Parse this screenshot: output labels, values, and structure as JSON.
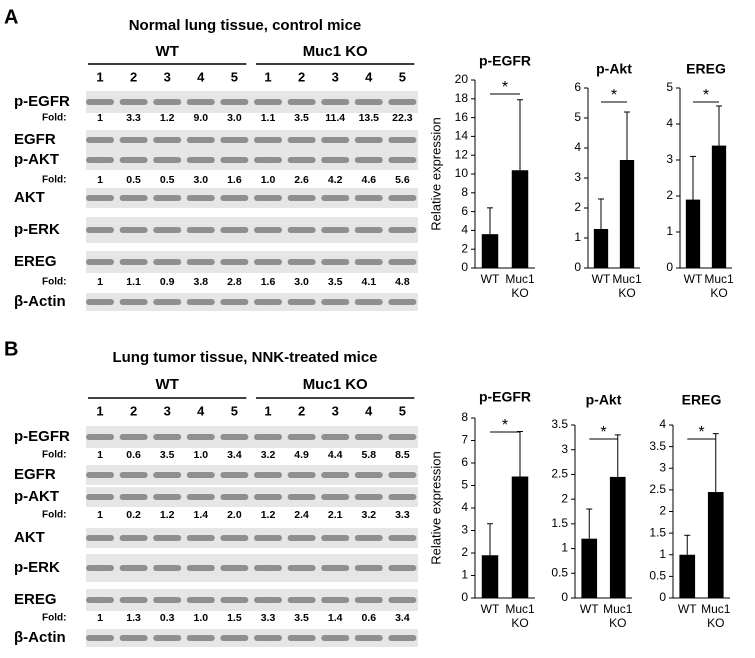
{
  "panels": [
    {
      "letter": "A",
      "title": "Normal lung tissue, control mice",
      "groups": [
        "WT",
        "Muc1 KO"
      ],
      "lanes": [
        "1",
        "2",
        "3",
        "4",
        "5",
        "1",
        "2",
        "3",
        "4",
        "5"
      ],
      "rows": [
        {
          "label": "p-EGFR",
          "fold_label": "Fold:",
          "folds": [
            "1",
            "3.3",
            "1.2",
            "9.0",
            "3.0",
            "1.1",
            "3.5",
            "11.4",
            "13.5",
            "22.3"
          ]
        },
        {
          "label": "EGFR"
        },
        {
          "label": "p-AKT",
          "fold_label": "Fold:",
          "folds": [
            "1",
            "0.5",
            "0.5",
            "3.0",
            "1.6",
            "1.0",
            "2.6",
            "4.2",
            "4.6",
            "5.6"
          ]
        },
        {
          "label": "AKT"
        },
        {
          "label": "p-ERK"
        },
        {
          "label": "EREG",
          "fold_label": "Fold:",
          "folds": [
            "1",
            "1.1",
            "0.9",
            "3.8",
            "2.8",
            "1.6",
            "3.0",
            "3.5",
            "4.1",
            "4.8"
          ]
        },
        {
          "label": "β-Actin"
        }
      ]
    },
    {
      "letter": "B",
      "title": "Lung tumor tissue, NNK-treated mice",
      "groups": [
        "WT",
        "Muc1 KO"
      ],
      "lanes": [
        "1",
        "2",
        "3",
        "4",
        "5",
        "1",
        "2",
        "3",
        "4",
        "5"
      ],
      "rows": [
        {
          "label": "p-EGFR",
          "fold_label": "Fold:",
          "folds": [
            "1",
            "0.6",
            "3.5",
            "1.0",
            "3.4",
            "3.2",
            "4.9",
            "4.4",
            "5.8",
            "8.5"
          ]
        },
        {
          "label": "EGFR"
        },
        {
          "label": "p-AKT",
          "fold_label": "Fold:",
          "folds": [
            "1",
            "0.2",
            "1.2",
            "1.4",
            "2.0",
            "1.2",
            "2.4",
            "2.1",
            "3.2",
            "3.3"
          ]
        },
        {
          "label": "AKT"
        },
        {
          "label": "p-ERK"
        },
        {
          "label": "EREG",
          "fold_label": "Fold:",
          "folds": [
            "1",
            "1.3",
            "0.3",
            "1.0",
            "1.5",
            "3.3",
            "3.5",
            "1.4",
            "0.6",
            "3.4"
          ]
        },
        {
          "label": "β-Actin"
        }
      ]
    }
  ],
  "chart_data": [
    {
      "type": "bar",
      "title": "p-EGFR",
      "ylabel": "Relative expression",
      "categories": [
        "WT",
        "Muc1 KO"
      ],
      "values": [
        3.6,
        10.4
      ],
      "errors": [
        2.8,
        7.5
      ],
      "color": "#000000",
      "ylim": [
        0,
        20
      ],
      "yticks": [
        0,
        2,
        4,
        6,
        8,
        10,
        12,
        14,
        16,
        18,
        20
      ],
      "annotation": "*"
    },
    {
      "type": "bar",
      "title": "p-Akt",
      "categories": [
        "WT",
        "Muc1 KO"
      ],
      "values": [
        1.3,
        3.6
      ],
      "errors": [
        1.0,
        1.6
      ],
      "color": "#000000",
      "ylim": [
        0,
        6
      ],
      "yticks": [
        0,
        1,
        2,
        3,
        4,
        5,
        6
      ],
      "annotation": "*"
    },
    {
      "type": "bar",
      "title": "EREG",
      "categories": [
        "WT",
        "Muc1 KO"
      ],
      "values": [
        1.9,
        3.4
      ],
      "errors": [
        1.2,
        1.1
      ],
      "color": "#000000",
      "ylim": [
        0,
        5
      ],
      "yticks": [
        0,
        1,
        2,
        3,
        4,
        5
      ],
      "annotation": "*"
    },
    {
      "type": "bar",
      "title": "p-EGFR",
      "ylabel": "Relative expression",
      "categories": [
        "WT",
        "Muc1 KO"
      ],
      "values": [
        1.9,
        5.4
      ],
      "errors": [
        1.4,
        2.0
      ],
      "color": "#000000",
      "ylim": [
        0,
        8
      ],
      "yticks": [
        0,
        1,
        2,
        3,
        4,
        5,
        6,
        7,
        8
      ],
      "annotation": "*"
    },
    {
      "type": "bar",
      "title": "p-Akt",
      "categories": [
        "WT",
        "Muc1 KO"
      ],
      "values": [
        1.2,
        2.45
      ],
      "errors": [
        0.6,
        0.85
      ],
      "color": "#000000",
      "ylim": [
        0,
        3.5
      ],
      "yticks": [
        0,
        0.5,
        1,
        1.5,
        2,
        2.5,
        3,
        3.5
      ],
      "annotation": "*"
    },
    {
      "type": "bar",
      "title": "EREG",
      "categories": [
        "WT",
        "Muc1 KO"
      ],
      "values": [
        1.0,
        2.45
      ],
      "errors": [
        0.45,
        1.35
      ],
      "color": "#000000",
      "ylim": [
        0,
        4
      ],
      "yticks": [
        0,
        0.5,
        1,
        1.5,
        2,
        2.5,
        3,
        3.5,
        4
      ],
      "annotation": "*"
    }
  ]
}
